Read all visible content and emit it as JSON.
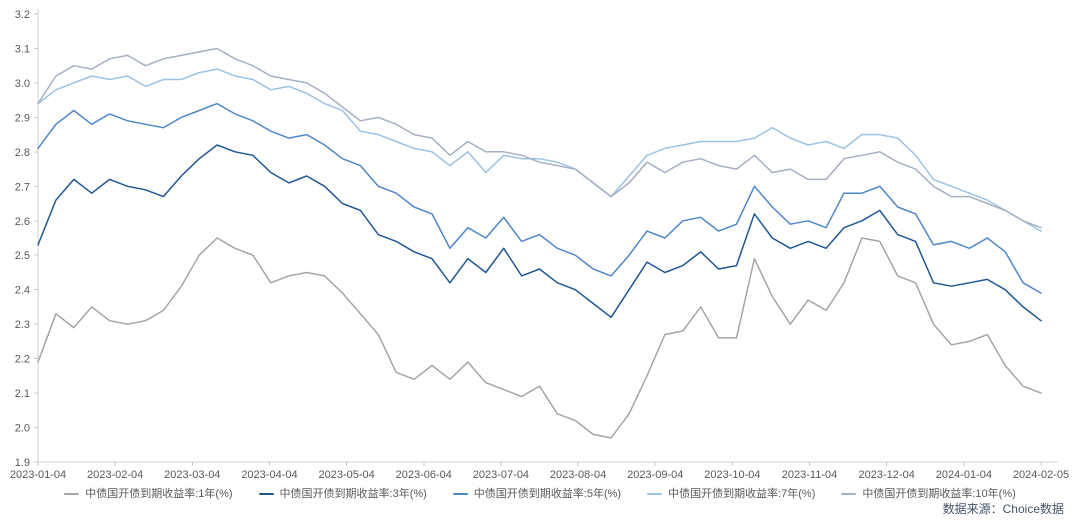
{
  "chart_data": {
    "type": "line",
    "title": "",
    "xlabel": "",
    "ylabel": "",
    "grid": false,
    "legend_position": "bottom",
    "ylim": [
      1.9,
      3.2
    ],
    "y_tick_labels": [
      "1.9",
      "2.0",
      "2.1",
      "2.2",
      "2.3",
      "2.4",
      "2.5",
      "2.6",
      "2.7",
      "2.8",
      "2.9",
      "3.0",
      "3.1",
      "3.2"
    ],
    "x_tick_labels": [
      "2023-01-04",
      "2023-02-04",
      "2023-03-04",
      "2023-04-04",
      "2023-05-04",
      "2023-06-04",
      "2023-07-04",
      "2023-08-04",
      "2023-09-04",
      "2023-10-04",
      "2023-11-04",
      "2023-12-04",
      "2024-01-04",
      "2024-02-05"
    ],
    "x_range": [
      "2023-01-04",
      "2024-02-05"
    ],
    "x_sampling": "weekly",
    "axis_color": "#D2D2D2",
    "tick_color": "#C9C9C9",
    "axis_text_color": "#595959",
    "series": [
      {
        "name": "中债国开债到期收益率:1年(%)",
        "color": "#A5A5A5",
        "values": [
          2.19,
          2.33,
          2.29,
          2.35,
          2.31,
          2.3,
          2.31,
          2.34,
          2.41,
          2.5,
          2.55,
          2.52,
          2.5,
          2.42,
          2.44,
          2.45,
          2.44,
          2.39,
          2.33,
          2.27,
          2.16,
          2.14,
          2.18,
          2.14,
          2.19,
          2.13,
          2.11,
          2.09,
          2.12,
          2.04,
          2.02,
          1.98,
          1.97,
          2.04,
          2.15,
          2.27,
          2.28,
          2.35,
          2.26,
          2.26,
          2.49,
          2.38,
          2.3,
          2.37,
          2.34,
          2.42,
          2.55,
          2.54,
          2.44,
          2.42,
          2.3,
          2.24,
          2.25,
          2.27,
          2.18,
          2.12,
          2.1
        ]
      },
      {
        "name": "中债国开债到期收益率:3年(%)",
        "color": "#1F5795",
        "values": [
          2.53,
          2.66,
          2.72,
          2.68,
          2.72,
          2.7,
          2.69,
          2.67,
          2.73,
          2.78,
          2.82,
          2.8,
          2.79,
          2.74,
          2.71,
          2.73,
          2.7,
          2.65,
          2.63,
          2.56,
          2.54,
          2.51,
          2.49,
          2.42,
          2.49,
          2.45,
          2.52,
          2.44,
          2.46,
          2.42,
          2.4,
          2.36,
          2.32,
          2.4,
          2.48,
          2.45,
          2.47,
          2.51,
          2.46,
          2.47,
          2.62,
          2.55,
          2.52,
          2.54,
          2.52,
          2.58,
          2.6,
          2.63,
          2.56,
          2.54,
          2.42,
          2.41,
          2.42,
          2.43,
          2.4,
          2.35,
          2.31
        ]
      },
      {
        "name": "中债国开债到期收益率:5年(%)",
        "color": "#4E87C9",
        "values": [
          2.81,
          2.88,
          2.92,
          2.88,
          2.91,
          2.89,
          2.88,
          2.87,
          2.9,
          2.92,
          2.94,
          2.91,
          2.89,
          2.86,
          2.84,
          2.85,
          2.82,
          2.78,
          2.76,
          2.7,
          2.68,
          2.64,
          2.62,
          2.52,
          2.58,
          2.55,
          2.61,
          2.54,
          2.56,
          2.52,
          2.5,
          2.46,
          2.44,
          2.5,
          2.57,
          2.55,
          2.6,
          2.61,
          2.57,
          2.59,
          2.7,
          2.64,
          2.59,
          2.6,
          2.58,
          2.68,
          2.68,
          2.7,
          2.64,
          2.62,
          2.53,
          2.54,
          2.52,
          2.55,
          2.51,
          2.42,
          2.39
        ]
      },
      {
        "name": "中债国开债到期收益率:7年(%)",
        "color": "#9CC2E5",
        "values": [
          2.94,
          2.98,
          3.0,
          3.02,
          3.01,
          3.02,
          2.99,
          3.01,
          3.01,
          3.03,
          3.04,
          3.02,
          3.01,
          2.98,
          2.99,
          2.97,
          2.94,
          2.92,
          2.86,
          2.85,
          2.83,
          2.81,
          2.8,
          2.76,
          2.8,
          2.74,
          2.79,
          2.78,
          2.78,
          2.77,
          2.75,
          2.71,
          2.67,
          2.73,
          2.79,
          2.81,
          2.82,
          2.83,
          2.83,
          2.83,
          2.84,
          2.87,
          2.84,
          2.82,
          2.83,
          2.81,
          2.85,
          2.85,
          2.84,
          2.79,
          2.72,
          2.7,
          2.68,
          2.66,
          2.63,
          2.6,
          2.57
        ]
      },
      {
        "name": "中债国开债到期收益率:10年(%)",
        "color": "#A6B0C3",
        "values": [
          2.94,
          3.02,
          3.05,
          3.04,
          3.07,
          3.08,
          3.05,
          3.07,
          3.08,
          3.09,
          3.1,
          3.07,
          3.05,
          3.02,
          3.01,
          3.0,
          2.97,
          2.93,
          2.89,
          2.9,
          2.88,
          2.85,
          2.84,
          2.79,
          2.83,
          2.8,
          2.8,
          2.79,
          2.77,
          2.76,
          2.75,
          2.71,
          2.67,
          2.71,
          2.77,
          2.74,
          2.77,
          2.78,
          2.76,
          2.75,
          2.79,
          2.74,
          2.75,
          2.72,
          2.72,
          2.78,
          2.79,
          2.8,
          2.77,
          2.75,
          2.7,
          2.67,
          2.67,
          2.65,
          2.63,
          2.6,
          2.58
        ]
      }
    ]
  },
  "source": {
    "label": "数据来源：Choice数据"
  }
}
